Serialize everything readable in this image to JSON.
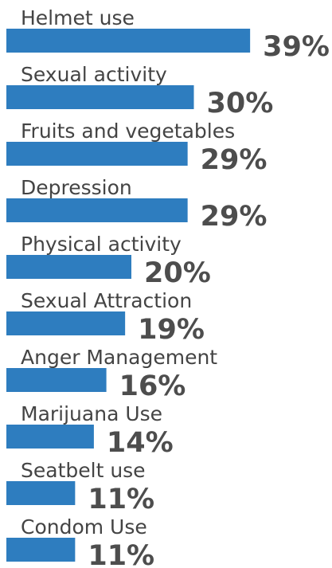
{
  "chart_data": {
    "type": "bar",
    "orientation": "horizontal",
    "color": "#2e7dbf",
    "categories": [
      "Helmet use",
      "Sexual activity",
      "Fruits and vegetables",
      "Depression",
      "Physical activity",
      "Sexual Attraction",
      "Anger Management",
      "Marijuana Use",
      "Seatbelt use",
      "Condom Use"
    ],
    "values": [
      39,
      30,
      29,
      29,
      20,
      19,
      16,
      14,
      11,
      11
    ],
    "value_labels": [
      "39%",
      "30%",
      "29%",
      "29%",
      "20%",
      "19%",
      "16%",
      "14%",
      "11%",
      "11%"
    ]
  }
}
